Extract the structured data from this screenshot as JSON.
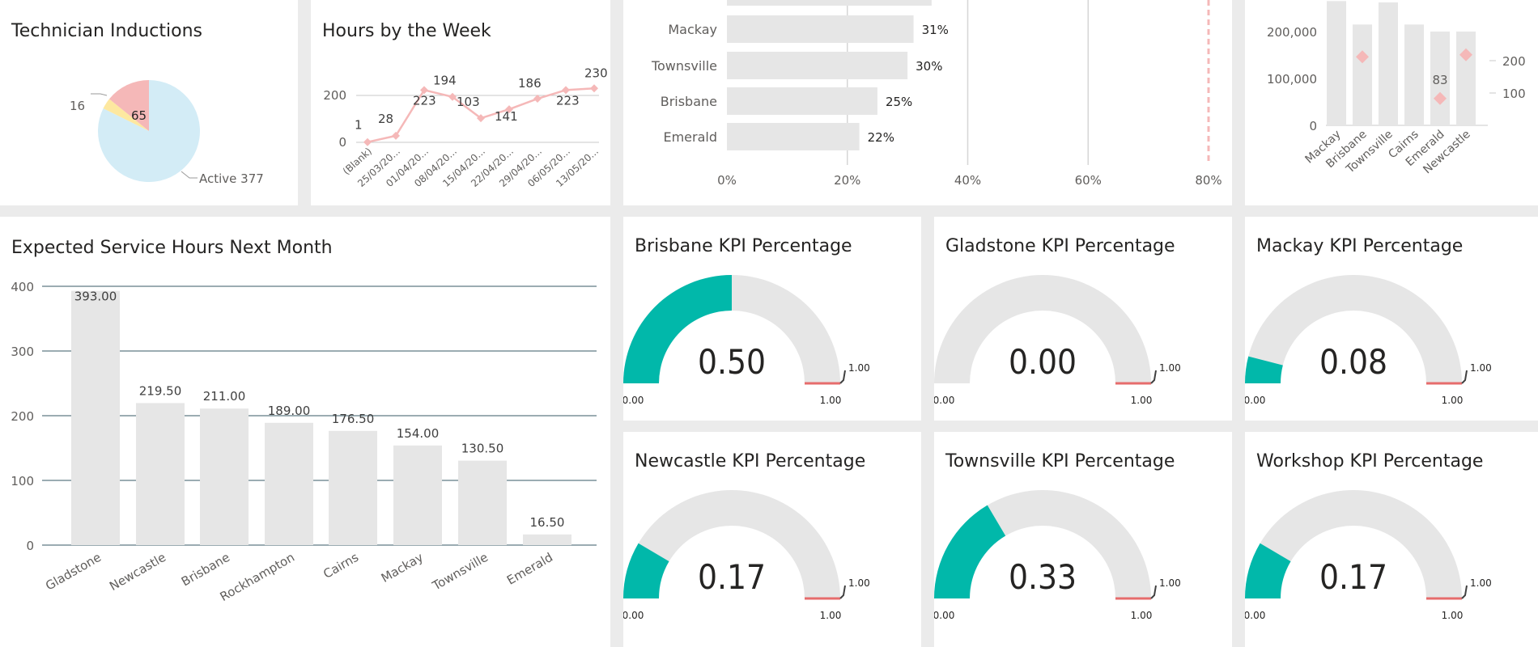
{
  "colors": {
    "bar_gray": "#e6e6e6",
    "teal": "#01b8aa",
    "pink": "#f5b8b8",
    "pale_blue": "#d3ecf6",
    "yellow": "#fde8a0",
    "gauge_target": "#e66c6c",
    "grid_blue": "#7a9098"
  },
  "induction": {
    "title": "Technician Inductions",
    "label_active": "Active 377",
    "label_16": "16",
    "label_65": "65",
    "chart_data": {
      "type": "pie",
      "labels": [
        "Active",
        "",
        ""
      ],
      "values": [
        377,
        16,
        65
      ],
      "title": "Technician Inductions"
    }
  },
  "hours_week": {
    "title": "Hours by the Week",
    "chart_data": {
      "type": "line",
      "title": "Hours by the Week",
      "x": [
        "(Blank)",
        "25/03/20...",
        "01/04/20...",
        "08/04/20...",
        "15/04/20...",
        "22/04/20...",
        "29/04/20...",
        "06/05/20...",
        "13/05/20..."
      ],
      "values": [
        1,
        28,
        223,
        194,
        103,
        141,
        186,
        223,
        230
      ],
      "y_ticks": [
        "0",
        "200"
      ],
      "ylim": [
        0,
        300
      ]
    }
  },
  "kpi_bars": {
    "chart_data": {
      "type": "bar",
      "orientation": "horizontal",
      "categories": [
        "",
        "Mackay",
        "Townsville",
        "Brisbane",
        "Emerald"
      ],
      "values": [
        34,
        31,
        30,
        25,
        22
      ],
      "value_labels": [
        "",
        "31%",
        "30%",
        "25%",
        "22%"
      ],
      "x_ticks": [
        "0%",
        "20%",
        "40%",
        "60%",
        "80%"
      ],
      "xlim": [
        0,
        80
      ],
      "target_line": 80
    }
  },
  "combo": {
    "chart_data": {
      "type": "bar",
      "categories": [
        "Mackay",
        "Brisbane",
        "Townsville",
        "Cairns",
        "Emerald",
        "Newcastle"
      ],
      "values": [
        265000,
        215000,
        262000,
        215000,
        200000,
        200000
      ],
      "y_ticks": [
        "0",
        "100,000",
        "200,000"
      ],
      "ylim": [
        0,
        250000
      ],
      "secondary_y_ticks": [
        "100",
        "200"
      ],
      "secondary_ylim": [
        0,
        250
      ],
      "markers": [
        {
          "category": "Brisbane",
          "value": 212
        },
        {
          "category": "Emerald",
          "value": 83,
          "label": "83"
        },
        {
          "category": "Newcastle",
          "value": 218
        }
      ]
    }
  },
  "service_hours": {
    "title": "Expected Service Hours Next Month",
    "chart_data": {
      "type": "bar",
      "title": "Expected Service Hours Next Month",
      "categories": [
        "Gladstone",
        "Newcastle",
        "Brisbane",
        "Rockhampton",
        "Cairns",
        "Mackay",
        "Townsville",
        "Emerald"
      ],
      "values": [
        393.0,
        219.5,
        211.0,
        189.0,
        176.5,
        154.0,
        130.5,
        16.5
      ],
      "value_labels": [
        "393.00",
        "219.50",
        "211.00",
        "189.00",
        "176.50",
        "154.00",
        "130.50",
        "16.50"
      ],
      "y_ticks": [
        "0",
        "100",
        "200",
        "300",
        "400"
      ],
      "ylim": [
        0,
        400
      ]
    }
  },
  "gauges": [
    {
      "title": "Brisbane KPI Percentage",
      "value": 0.5,
      "display": "0.50",
      "min_label": "0.00",
      "max_label": "1.00",
      "target_label": "1.00"
    },
    {
      "title": "Gladstone KPI Percentage",
      "value": 0.0,
      "display": "0.00",
      "min_label": "0.00",
      "max_label": "1.00",
      "target_label": "1.00"
    },
    {
      "title": "Mackay KPI Percentage",
      "value": 0.08,
      "display": "0.08",
      "min_label": "0.00",
      "max_label": "1.00",
      "target_label": "1.00"
    },
    {
      "title": "Newcastle KPI Percentage",
      "value": 0.17,
      "display": "0.17",
      "min_label": "0.00",
      "max_label": "1.00",
      "target_label": "1.00"
    },
    {
      "title": "Townsville KPI Percentage",
      "value": 0.33,
      "display": "0.33",
      "min_label": "0.00",
      "max_label": "1.00",
      "target_label": "1.00"
    },
    {
      "title": "Workshop KPI Percentage",
      "value": 0.17,
      "display": "0.17",
      "min_label": "0.00",
      "max_label": "1.00",
      "target_label": "1.00"
    }
  ]
}
